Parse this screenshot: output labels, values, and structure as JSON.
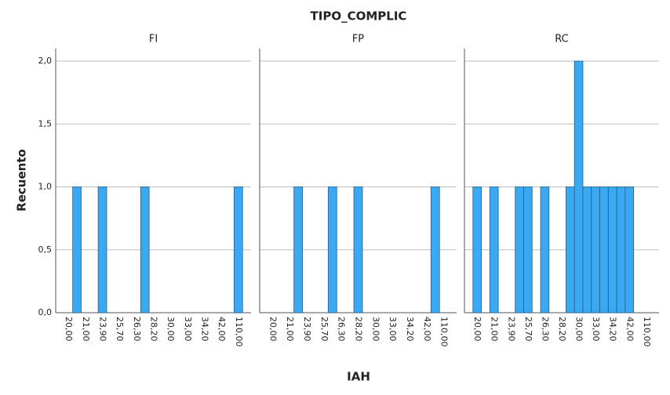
{
  "chart_data": {
    "type": "bar",
    "title": "TIPO_COMPLIC",
    "x_label": "IAH",
    "y_label": "Recuento",
    "categories": [
      "20,00",
      null,
      "21,00",
      null,
      "23,90",
      null,
      "25,70",
      null,
      "26,30",
      null,
      "28,20",
      null,
      "30,00",
      null,
      "33,00",
      null,
      "34,20",
      null,
      "42,00",
      null,
      "110,00"
    ],
    "series": [
      {
        "name": "FI",
        "color": "#3ba9f1",
        "values": [
          0,
          1,
          0,
          0,
          1,
          0,
          0,
          0,
          0,
          1,
          0,
          0,
          0,
          0,
          0,
          0,
          0,
          0,
          0,
          0,
          1
        ]
      },
      {
        "name": "FP",
        "color": "#3ba9f1",
        "values": [
          0,
          0,
          0,
          1,
          0,
          0,
          0,
          1,
          0,
          0,
          1,
          0,
          0,
          0,
          0,
          0,
          0,
          0,
          0,
          1,
          0
        ]
      },
      {
        "name": "RC",
        "color": "#3ba9f1",
        "values": [
          1,
          0,
          1,
          0,
          0,
          1,
          1,
          0,
          1,
          0,
          0,
          1,
          2,
          1,
          1,
          1,
          1,
          1,
          1,
          0,
          0
        ]
      }
    ],
    "ylim": [
      0,
      2.1
    ],
    "yticks": [
      {
        "value": 0,
        "label": "0,0"
      },
      {
        "value": 0.5,
        "label": "0,5"
      },
      {
        "value": 1,
        "label": "1,0"
      },
      {
        "value": 1.5,
        "label": "1,5"
      },
      {
        "value": 2,
        "label": "2,0"
      }
    ],
    "grid": true
  }
}
